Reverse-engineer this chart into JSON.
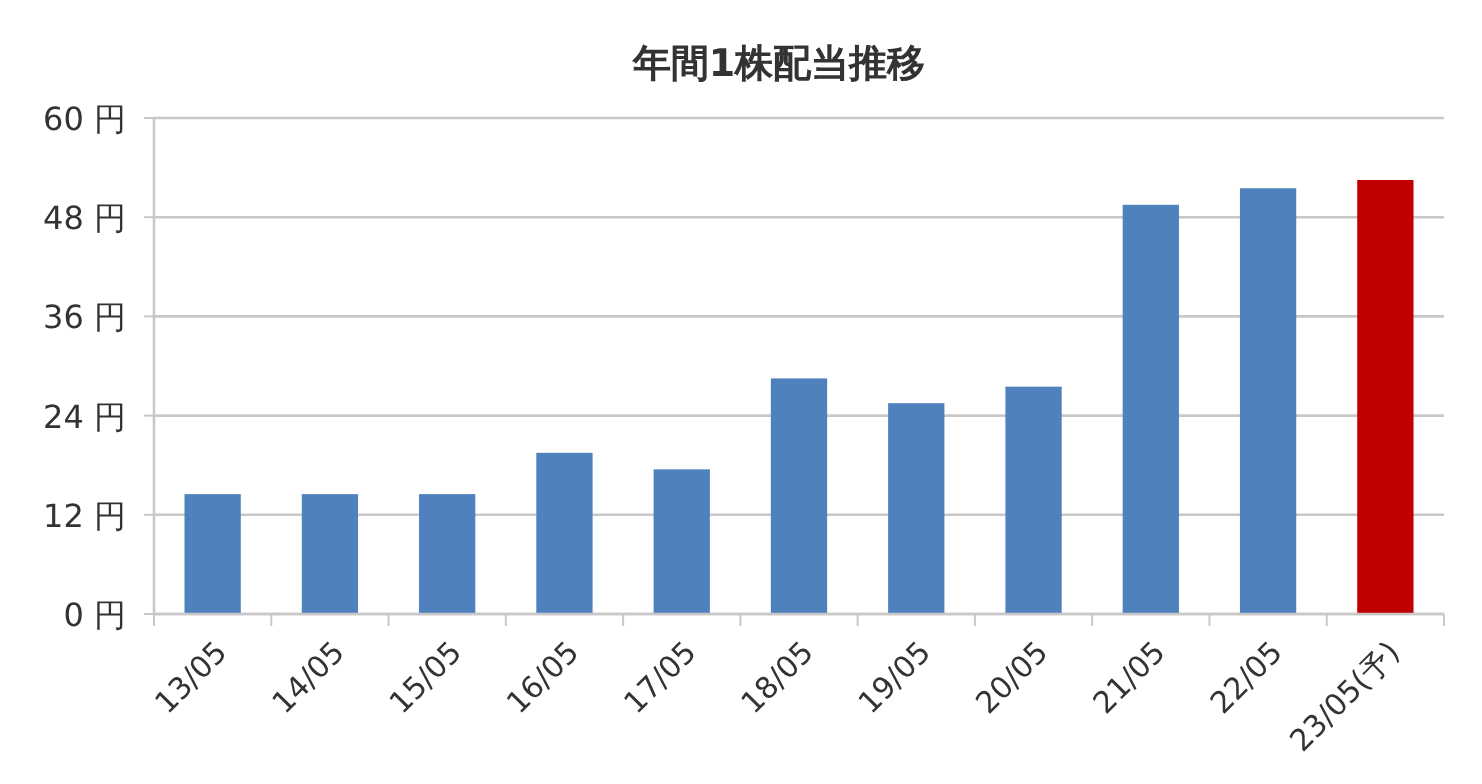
{
  "chart_data": {
    "type": "bar",
    "title": "年間1株配当推移",
    "categories": [
      "13/05",
      "14/05",
      "15/05",
      "16/05",
      "17/05",
      "18/05",
      "19/05",
      "20/05",
      "21/05",
      "22/05",
      "23/05(予)"
    ],
    "values": [
      14.5,
      14.5,
      14.5,
      19.5,
      17.5,
      28.5,
      25.5,
      27.5,
      49.5,
      51.5,
      52.5
    ],
    "colors": [
      "#4f81bd",
      "#4f81bd",
      "#4f81bd",
      "#4f81bd",
      "#4f81bd",
      "#4f81bd",
      "#4f81bd",
      "#4f81bd",
      "#4f81bd",
      "#4f81bd",
      "#c00000"
    ],
    "ylim": [
      0,
      60
    ],
    "yticks": [
      {
        "value": 0,
        "label": "0 円"
      },
      {
        "value": 12,
        "label": "12 円"
      },
      {
        "value": 24,
        "label": "24 円"
      },
      {
        "value": 36,
        "label": "36 円"
      },
      {
        "value": 48,
        "label": "48 円"
      },
      {
        "value": 60,
        "label": "60 円"
      }
    ],
    "grid": "y"
  }
}
